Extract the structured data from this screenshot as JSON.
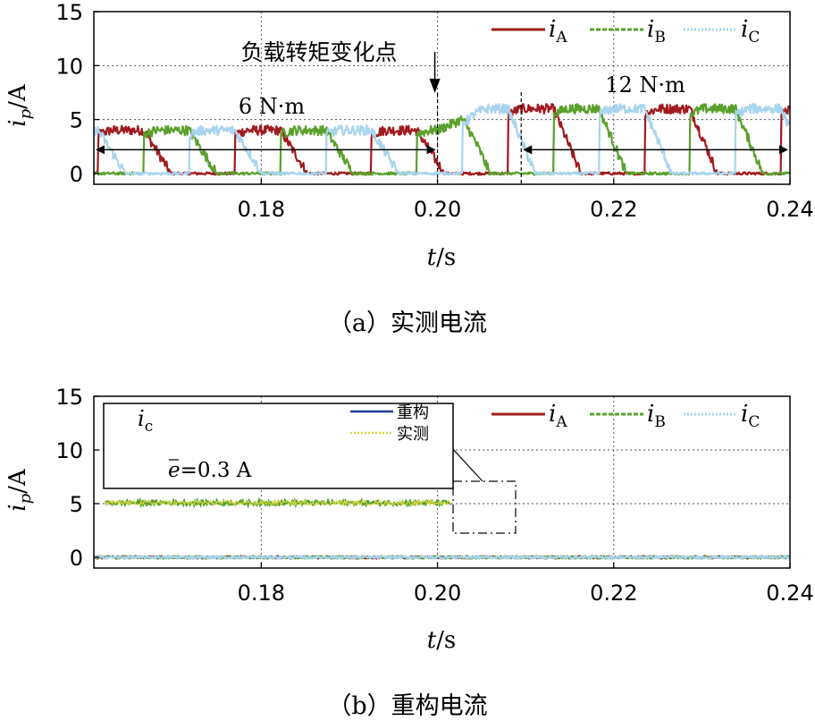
{
  "chart_data": [
    {
      "type": "line",
      "caption": "（a）实测电流",
      "xlabel_italic": "t",
      "xlabel_unit": "/s",
      "ylabel_italic": "i",
      "ylabel_sub": "p",
      "ylabel_unit": "/A",
      "xlim": [
        0.161,
        0.24
      ],
      "ylim": [
        -1,
        15
      ],
      "xticks": [
        0.18,
        0.2,
        0.22,
        0.24
      ],
      "xtick_labels": [
        "0.18",
        "0.20",
        "0.22",
        "0.24"
      ],
      "yticks": [
        0,
        5,
        10,
        15
      ],
      "ytick_labels": [
        "0",
        "5",
        "10",
        "15"
      ],
      "grid": true,
      "legend_position": "top-right",
      "series": [
        {
          "name": "A",
          "color": "#a01a1e",
          "dash": "solid",
          "phase": 0
        },
        {
          "name": "B",
          "color": "#5aa02c",
          "dash": "dashed",
          "phase": 1
        },
        {
          "name": "C",
          "color": "#a8d4ee",
          "dash": "dotted",
          "phase": 2
        }
      ],
      "conduction_period_s": 0.0155,
      "commutation_angle_ms": 0.0031,
      "load_change_time": 0.2,
      "level_before_A": 4.0,
      "level_after_A": 6.0,
      "annotations": {
        "change_point": "负载转矩变化点",
        "load_before": "6 N·m",
        "load_after": "12 N·m"
      }
    },
    {
      "type": "line",
      "caption": "（b）重构电流",
      "xlabel_italic": "t",
      "xlabel_unit": "/s",
      "ylabel_italic": "i",
      "ylabel_sub": "p",
      "ylabel_unit": "/A",
      "xlim": [
        0.161,
        0.24
      ],
      "ylim": [
        -1,
        15
      ],
      "xticks": [
        0.18,
        0.2,
        0.22,
        0.24
      ],
      "xtick_labels": [
        "0.18",
        "0.20",
        "0.22",
        "0.24"
      ],
      "yticks": [
        0,
        5,
        10,
        15
      ],
      "ytick_labels": [
        "0",
        "5",
        "10",
        "15"
      ],
      "grid": true,
      "legend_position": "top-right",
      "series": [
        {
          "name": "A",
          "color": "#a01a1e",
          "dash": "solid",
          "phase": 0
        },
        {
          "name": "B",
          "color": "#5aa02c",
          "dash": "dashed",
          "phase": 1
        },
        {
          "name": "C",
          "color": "#a8d4ee",
          "dash": "dotted",
          "phase": 2
        }
      ],
      "inset": {
        "signal_italic": "i",
        "signal_sub": "c",
        "legend": [
          {
            "name": "重构",
            "color": "#1f3f99"
          },
          {
            "name": "实测",
            "color": "#d8d840"
          }
        ],
        "error_symbol": "e",
        "error_text": "=0.3 A",
        "zoom_x_range": [
          0.2007,
          0.2088
        ],
        "zoom_y_range": [
          1.5,
          6.8
        ]
      }
    }
  ]
}
